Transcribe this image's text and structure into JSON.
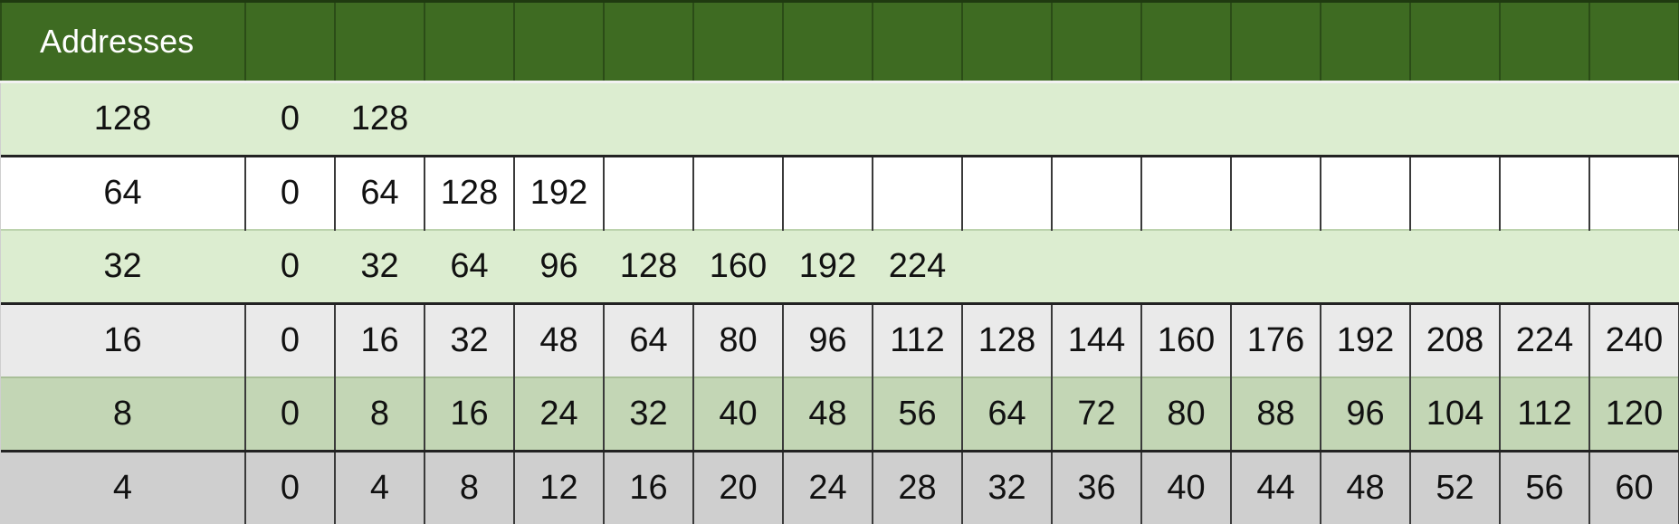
{
  "table": {
    "header": [
      "Addresses",
      "",
      "",
      "",
      "",
      "",
      "",
      "",
      "",
      "",
      "",
      "",
      "",
      "",
      "",
      "",
      "",
      ""
    ],
    "rows": [
      [
        "128",
        "0",
        "128",
        "",
        "",
        "",
        "",
        "",
        "",
        "",
        "",
        "",
        "",
        "",
        "",
        "",
        "",
        ""
      ],
      [
        "64",
        "0",
        "64",
        "128",
        "192",
        "",
        "",
        "",
        "",
        "",
        "",
        "",
        "",
        "",
        "",
        "",
        "",
        ""
      ],
      [
        "32",
        "0",
        "32",
        "64",
        "96",
        "128",
        "160",
        "192",
        "224",
        "",
        "",
        "",
        "",
        "",
        "",
        "",
        "",
        ""
      ],
      [
        "16",
        "0",
        "16",
        "32",
        "48",
        "64",
        "80",
        "96",
        "112",
        "128",
        "144",
        "160",
        "176",
        "192",
        "208",
        "224",
        "240",
        ""
      ],
      [
        "8",
        "0",
        "8",
        "16",
        "24",
        "32",
        "40",
        "48",
        "56",
        "64",
        "72",
        "80",
        "88",
        "96",
        "104",
        "112",
        "120",
        ""
      ],
      [
        "4",
        "0",
        "4",
        "8",
        "12",
        "16",
        "20",
        "24",
        "28",
        "32",
        "36",
        "40",
        "44",
        "48",
        "52",
        "56",
        "60",
        ""
      ]
    ]
  },
  "colors": {
    "header": "#3e6b22",
    "light_green": "#dcedd0",
    "mid_green": "#c3d6b5",
    "white": "#ffffff",
    "light_gray": "#eaeaea",
    "gray": "#cfcfcf"
  }
}
